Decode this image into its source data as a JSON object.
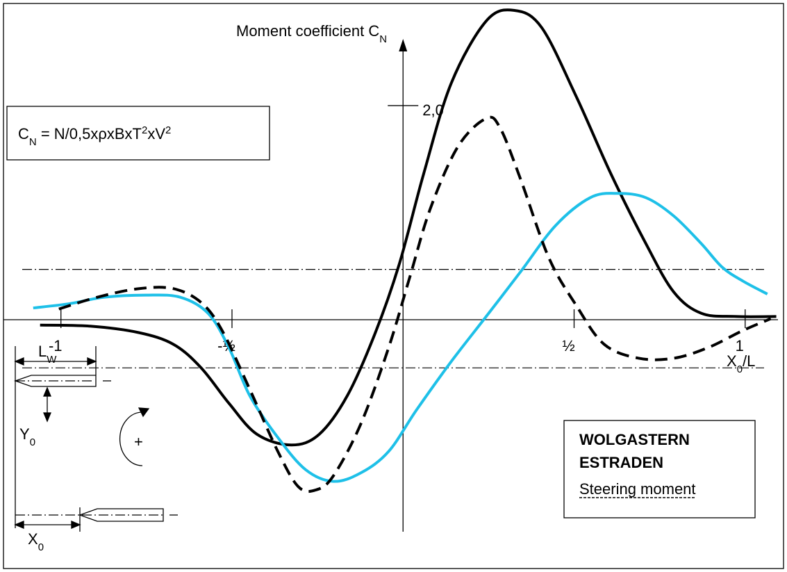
{
  "chart_data": {
    "type": "line",
    "ylabel": [
      {
        "text": "Moment coefficient C"
      },
      {
        "text": "N",
        "style": "sub"
      }
    ],
    "xlabel": [
      {
        "text": "X"
      },
      {
        "text": "0",
        "style": "sub"
      },
      {
        "text": "/L"
      }
    ],
    "formula": [
      {
        "text": "C"
      },
      {
        "text": "N",
        "style": "sub"
      },
      {
        "text": " = N/0,5xρxBxT"
      },
      {
        "text": "2",
        "style": "sup"
      },
      {
        "text": "xV"
      },
      {
        "text": "2",
        "style": "sup"
      }
    ],
    "xlim": [
      -1.17,
      1.1
    ],
    "ylim": [
      -2.35,
      2.98
    ],
    "xticks": [
      {
        "value": -1,
        "label": "-1"
      },
      {
        "value": -0.5,
        "label": "-½"
      },
      {
        "value": 0.5,
        "label": "½"
      },
      {
        "value": 1,
        "label": "1"
      }
    ],
    "yticks": [
      {
        "value": 2,
        "label": "2,0"
      }
    ],
    "reference_lines": [
      0.47,
      -0.45
    ],
    "series": [
      {
        "name": "WOLGASTERN",
        "color": "#000000",
        "dash": "solid",
        "x": [
          -1.061,
          -0.915,
          -0.773,
          -0.671,
          -0.59,
          -0.509,
          -0.427,
          -0.326,
          -0.245,
          -0.163,
          -0.082,
          -0.011,
          0.06,
          0.141,
          0.243,
          0.324,
          0.405,
          0.507,
          0.608,
          0.71,
          0.791,
          0.872,
          0.974,
          1.091
        ],
        "values": [
          -0.05,
          -0.06,
          -0.12,
          -0.23,
          -0.45,
          -0.78,
          -1.07,
          -1.17,
          -1.07,
          -0.71,
          -0.13,
          0.52,
          1.36,
          2.21,
          2.79,
          2.89,
          2.73,
          2.08,
          1.36,
          0.71,
          0.26,
          0.06,
          0.03,
          0.03
        ]
      },
      {
        "name": "ESTRADEN",
        "color": "#1ec0e8",
        "dash": "solid",
        "x": [
          -1.081,
          -0.975,
          -0.874,
          -0.752,
          -0.651,
          -0.57,
          -0.509,
          -0.448,
          -0.366,
          -0.285,
          -0.204,
          -0.123,
          -0.042,
          0.04,
          0.141,
          0.243,
          0.344,
          0.446,
          0.547,
          0.628,
          0.71,
          0.791,
          0.872,
          0.933,
          0.994,
          1.065
        ],
        "values": [
          0.11,
          0.15,
          0.21,
          0.23,
          0.21,
          0.06,
          -0.26,
          -0.71,
          -1.1,
          -1.4,
          -1.51,
          -1.43,
          -1.23,
          -0.84,
          -0.39,
          0.03,
          0.45,
          0.88,
          1.14,
          1.18,
          1.14,
          0.97,
          0.71,
          0.49,
          0.36,
          0.24
        ]
      },
      {
        "name": "Steering moment",
        "color": "#000000",
        "dash": "dashed",
        "x": [
          -1.006,
          -0.894,
          -0.773,
          -0.671,
          -0.59,
          -0.529,
          -0.448,
          -0.366,
          -0.306,
          -0.255,
          -0.204,
          -0.123,
          -0.042,
          0.019,
          0.08,
          0.161,
          0.243,
          0.284,
          0.345,
          0.426,
          0.507,
          0.588,
          0.689,
          0.791,
          0.892,
          0.994,
          1.075
        ],
        "values": [
          0.1,
          0.21,
          0.29,
          0.29,
          0.16,
          -0.1,
          -0.65,
          -1.23,
          -1.56,
          -1.59,
          -1.46,
          -0.97,
          -0.26,
          0.39,
          1.04,
          1.62,
          1.88,
          1.79,
          1.3,
          0.58,
          0.13,
          -0.23,
          -0.36,
          -0.36,
          -0.26,
          -0.1,
          0.01
        ]
      }
    ],
    "inset": {
      "lw": [
        {
          "text": "L"
        },
        {
          "text": "W",
          "style": "sub"
        }
      ],
      "y0": [
        {
          "text": "Y"
        },
        {
          "text": "0",
          "style": "sub"
        }
      ],
      "x0": [
        {
          "text": "X"
        },
        {
          "text": "0",
          "style": "sub"
        }
      ],
      "rotation": "+"
    }
  }
}
